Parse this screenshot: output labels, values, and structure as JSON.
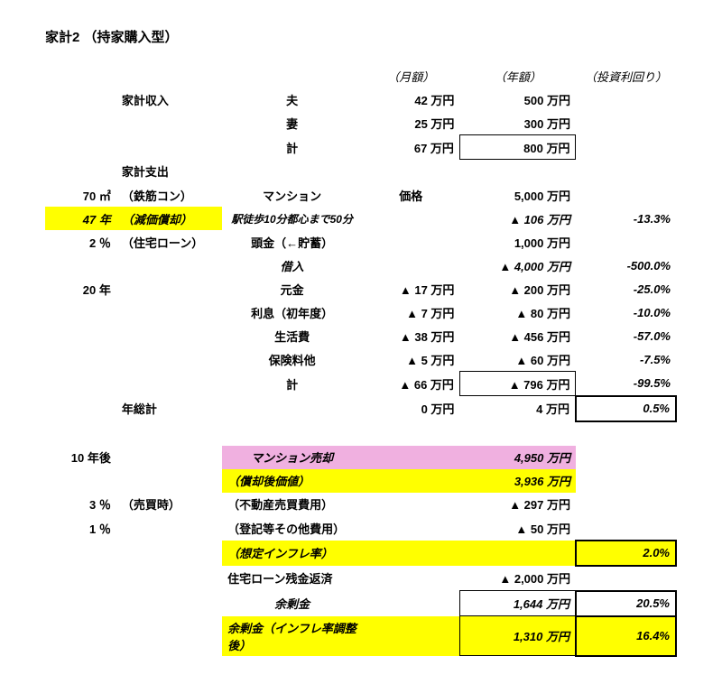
{
  "title": "家計2 （持家購入型）",
  "headers": {
    "month": "（月額）",
    "year": "（年額）",
    "yield": "（投資利回り）"
  },
  "income": {
    "label": "家計収入",
    "rows": [
      {
        "item": "夫",
        "month": "42 万円",
        "year": "500 万円"
      },
      {
        "item": "妻",
        "month": "25 万円",
        "year": "300 万円"
      },
      {
        "item": "計",
        "month": "67 万円",
        "year": "800 万円"
      }
    ]
  },
  "expense_label": "家計支出",
  "params": {
    "area": {
      "val": "70 ㎡",
      "note": "（鉄筋コン）"
    },
    "years": {
      "val": "47 年",
      "note": "（減価償却）"
    },
    "loan_rate": {
      "val": "2 ％",
      "note": "（住宅ローン）"
    },
    "term": {
      "val": "20 年"
    }
  },
  "expenses": [
    {
      "item": "マンション",
      "month": "",
      "mid": "価格",
      "year": "5,000 万円",
      "yield": ""
    },
    {
      "item": "駅徒歩10分都心まで50分",
      "month": "",
      "year": "▲ 106 万円",
      "yield": "-13.3%"
    },
    {
      "item": "頭金（←貯蓄）",
      "month": "",
      "year": "1,000 万円",
      "yield": ""
    },
    {
      "item": "借入",
      "month": "",
      "year": "▲ 4,000 万円",
      "yield": "-500.0%"
    },
    {
      "item": "元金",
      "month": "▲ 17 万円",
      "year": "▲ 200 万円",
      "yield": "-25.0%"
    },
    {
      "item": "利息（初年度）",
      "month": "▲ 7 万円",
      "year": "▲ 80 万円",
      "yield": "-10.0%"
    },
    {
      "item": "生活費",
      "month": "▲ 38 万円",
      "year": "▲ 456 万円",
      "yield": "-57.0%"
    },
    {
      "item": "保険料他",
      "month": "▲ 5 万円",
      "year": "▲ 60 万円",
      "yield": "-7.5%"
    },
    {
      "item": "計",
      "month": "▲ 66 万円",
      "year": "▲ 796 万円",
      "yield": "-99.5%"
    }
  ],
  "annual_total": {
    "label": "年総計",
    "month": "0 万円",
    "year": "4 万円",
    "yield": "0.5%"
  },
  "future": {
    "label": "10 年後",
    "sell_pct": {
      "val": "3 ％",
      "note": "（売買時）"
    },
    "reg_pct": {
      "val": "1 ％"
    },
    "rows": [
      {
        "item": "マンション売却",
        "year": "4,950 万円",
        "bg": "pink"
      },
      {
        "item": "（償却後価値）",
        "year": "3,936 万円",
        "bg": "yellow"
      },
      {
        "item": "（不動産売買費用）",
        "year": "▲ 297 万円"
      },
      {
        "item": "（登記等その他費用）",
        "year": "▲ 50 万円"
      },
      {
        "item": "（想定インフレ率）",
        "year": "",
        "yield": "2.0%",
        "bg": "yellow"
      },
      {
        "item": "住宅ローン残金返済",
        "year": "▲ 2,000 万円"
      },
      {
        "item": "余剰金",
        "year": "1,644 万円",
        "yield": "20.5%"
      },
      {
        "item": "余剰金（インフレ率調整後）",
        "year": "1,310 万円",
        "yield": "16.4%",
        "bg": "yellow"
      }
    ]
  },
  "colors": {
    "yellow": "#ffff00",
    "pink": "#f0b0e0",
    "text": "#000000",
    "background": "#ffffff"
  }
}
